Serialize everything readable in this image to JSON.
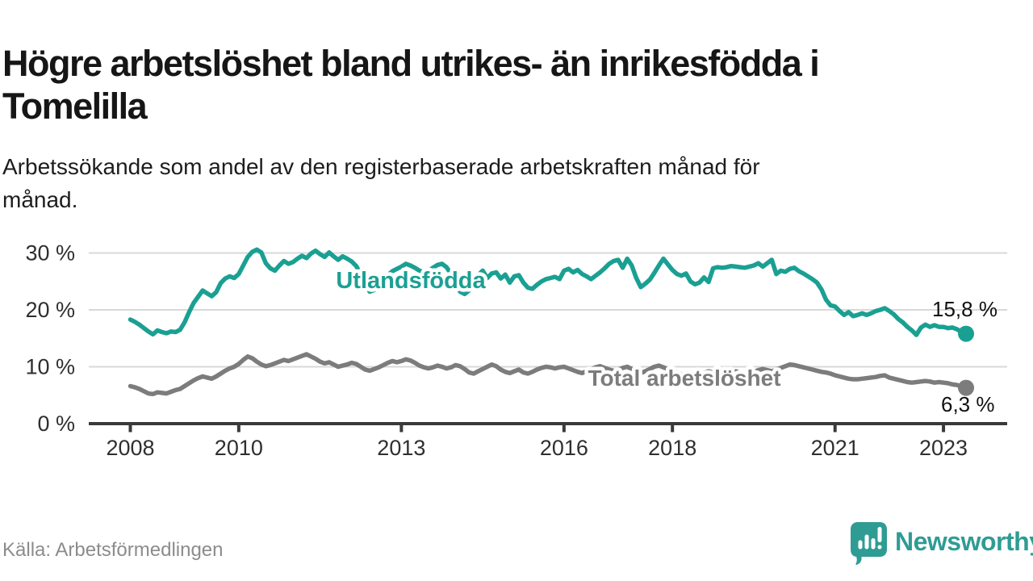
{
  "header": {
    "title_lines": [
      "Högre arbetslöshet bland utrikes- än inrikesfödda i",
      "Tomelilla"
    ],
    "subtitle_lines": [
      "Arbetssökande som andel av den registerbaserade arbetskraften månad för",
      "månad."
    ]
  },
  "footer": {
    "source": "Källa: Arbetsförmedlingen",
    "brand": "Newsworthy"
  },
  "colors": {
    "teal": "#1aa093",
    "gray": "#7c7c7c",
    "axis": "#3a3a3a",
    "grid": "#d8d8d8",
    "tick_text": "#2f2f2f",
    "value_text": "#111111",
    "brand_teal": "#2f9c94"
  },
  "chart_data": {
    "type": "line",
    "unit": "percent",
    "frequency": "monthly",
    "x_start": "2008-01",
    "x_end": "2023-06",
    "x_tick_years": [
      2008,
      2010,
      2013,
      2016,
      2018,
      2021,
      2023
    ],
    "y_ticks": [
      0,
      10,
      20,
      30
    ],
    "y_tick_suffix": " %",
    "ylim": [
      0,
      32
    ],
    "grid": "horizontal",
    "legend_position": "inline-labels",
    "series": [
      {
        "name": "Utlandsfödda",
        "color_key": "teal",
        "end_value_label": "15,8 %",
        "last_value": 15.8,
        "values": [
          18.3,
          17.9,
          17.4,
          16.8,
          16.2,
          15.7,
          16.4,
          16.1,
          15.9,
          16.2,
          16.1,
          16.5,
          17.8,
          19.6,
          21.2,
          22.3,
          23.4,
          22.9,
          22.4,
          23.1,
          24.7,
          25.5,
          25.9,
          25.6,
          26.3,
          27.8,
          29.3,
          30.2,
          30.6,
          30.1,
          28.2,
          27.3,
          26.9,
          27.8,
          28.6,
          28.1,
          28.4,
          29.0,
          29.5,
          29.1,
          29.9,
          30.4,
          29.8,
          29.3,
          30.1,
          29.4,
          28.8,
          29.4,
          29.0,
          28.5,
          27.7,
          26.3,
          24.3,
          23.2,
          23.5,
          24.3,
          25.2,
          26.1,
          26.8,
          27.2,
          27.6,
          28.1,
          27.8,
          27.4,
          26.9,
          26.6,
          26.9,
          27.4,
          27.9,
          28.1,
          27.5,
          26.3,
          24.6,
          23.2,
          22.8,
          23.4,
          24.7,
          26.1,
          26.9,
          25.6,
          26.4,
          26.6,
          25.5,
          26.2,
          24.8,
          25.9,
          26.1,
          24.8,
          23.9,
          23.7,
          24.4,
          25.0,
          25.4,
          25.6,
          25.8,
          25.4,
          26.9,
          27.2,
          26.6,
          27.0,
          26.3,
          25.9,
          25.4,
          26.0,
          26.6,
          27.3,
          28.1,
          28.6,
          28.8,
          27.4,
          29.0,
          27.8,
          25.6,
          24.0,
          24.6,
          25.3,
          26.5,
          27.8,
          29.0,
          28.0,
          27.0,
          26.3,
          26.0,
          26.4,
          25.0,
          24.5,
          24.8,
          25.7,
          24.9,
          27.3,
          27.5,
          27.4,
          27.5,
          27.7,
          27.6,
          27.5,
          27.4,
          27.6,
          27.8,
          28.2,
          27.6,
          28.2,
          28.8,
          26.3,
          26.9,
          26.7,
          27.2,
          27.4,
          26.8,
          26.4,
          25.9,
          25.4,
          24.8,
          23.6,
          21.8,
          20.8,
          20.6,
          19.8,
          19.1,
          19.6,
          18.9,
          19.1,
          19.4,
          19.1,
          19.4,
          19.8,
          20.0,
          20.3,
          19.8,
          19.2,
          18.4,
          17.8,
          17.0,
          16.4,
          15.6,
          16.9,
          17.4,
          17.0,
          17.3,
          17.0,
          17.0,
          16.8,
          16.9,
          16.6,
          16.1,
          15.8
        ]
      },
      {
        "name": "Total arbetslöshet",
        "color_key": "gray",
        "end_value_label": "6,3 %",
        "last_value": 6.3,
        "values": [
          6.6,
          6.4,
          6.1,
          5.7,
          5.3,
          5.2,
          5.5,
          5.4,
          5.3,
          5.6,
          5.9,
          6.1,
          6.6,
          7.1,
          7.6,
          8.0,
          8.3,
          8.1,
          7.9,
          8.3,
          8.8,
          9.3,
          9.7,
          10.0,
          10.5,
          11.2,
          11.8,
          11.5,
          10.9,
          10.4,
          10.1,
          10.3,
          10.6,
          10.9,
          11.2,
          11.0,
          11.3,
          11.6,
          11.9,
          12.2,
          11.8,
          11.4,
          10.9,
          10.6,
          10.8,
          10.4,
          10.0,
          10.2,
          10.4,
          10.7,
          10.5,
          10.0,
          9.5,
          9.3,
          9.6,
          9.9,
          10.3,
          10.7,
          11.0,
          10.8,
          11.0,
          11.3,
          11.1,
          10.7,
          10.2,
          9.9,
          9.7,
          9.9,
          10.2,
          10.0,
          9.7,
          9.9,
          10.3,
          10.1,
          9.6,
          9.0,
          8.8,
          9.2,
          9.6,
          10.0,
          10.4,
          10.1,
          9.5,
          9.1,
          8.9,
          9.2,
          9.5,
          9.0,
          8.8,
          9.1,
          9.5,
          9.8,
          10.0,
          9.9,
          9.7,
          9.9,
          10.0,
          9.7,
          9.4,
          9.1,
          8.9,
          9.2,
          9.6,
          9.9,
          10.1,
          9.8,
          9.5,
          9.3,
          9.5,
          9.8,
          10.0,
          9.6,
          9.2,
          8.9,
          9.2,
          9.6,
          10.0,
          10.2,
          9.9,
          9.6,
          9.3,
          9.0,
          8.7,
          8.4,
          8.1,
          8.3,
          8.6,
          8.9,
          9.2,
          9.0,
          8.7,
          8.5,
          8.7,
          9.0,
          9.2,
          8.9,
          8.6,
          8.8,
          9.1,
          9.4,
          9.6,
          9.4,
          9.2,
          9.5,
          9.8,
          10.1,
          10.4,
          10.3,
          10.1,
          9.9,
          9.7,
          9.5,
          9.3,
          9.1,
          9.0,
          8.8,
          8.5,
          8.3,
          8.1,
          7.9,
          7.8,
          7.8,
          7.9,
          8.0,
          8.1,
          8.2,
          8.4,
          8.5,
          8.1,
          7.9,
          7.7,
          7.5,
          7.3,
          7.2,
          7.3,
          7.4,
          7.5,
          7.4,
          7.2,
          7.3,
          7.2,
          7.1,
          6.9,
          6.8,
          6.5,
          6.3
        ]
      }
    ]
  }
}
